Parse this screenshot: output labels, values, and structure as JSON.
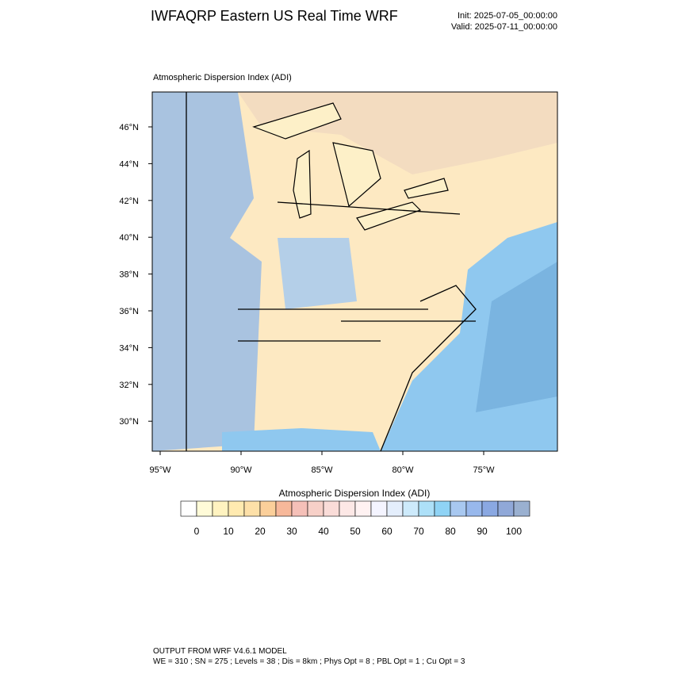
{
  "header": {
    "title": "IWFAQRP Eastern US Real Time WRF",
    "init": "Init: 2025-07-05_00:00:00",
    "valid": "Valid: 2025-07-11_00:00:00"
  },
  "map": {
    "subtitle": "Atmospheric Dispersion Index   (ADI)",
    "lat_labels": [
      "46°N",
      "44°N",
      "42°N",
      "40°N",
      "38°N",
      "36°N",
      "34°N",
      "32°N",
      "30°N"
    ],
    "lon_labels": [
      "95°W",
      "90°W",
      "85°W",
      "80°W",
      "75°W"
    ]
  },
  "colorbar": {
    "title": "Atmospheric Dispersion Index  (ADI)",
    "labels": [
      0,
      10,
      20,
      30,
      40,
      50,
      60,
      70,
      80,
      90,
      100
    ],
    "colors": [
      "#ffffff",
      "#fffbd8",
      "#fff3c0",
      "#ffeab0",
      "#fde0a8",
      "#fbcf9a",
      "#f7b89a",
      "#f5c0b8",
      "#f7d0c8",
      "#fadcd8",
      "#fde8e6",
      "#fff2f2",
      "#f4f4ff",
      "#e4eefc",
      "#cdeafb",
      "#ade0f8",
      "#8fd3f5",
      "#a8c8f0",
      "#98b8ec",
      "#8aa8e2",
      "#90a8d8",
      "#9ab0d0"
    ]
  },
  "footer": {
    "line1": "OUTPUT FROM WRF V4.6.1 MODEL",
    "line2": "WE = 310 ; SN = 275 ; Levels = 38 ; Dis = 8km ; Phys Opt = 8 ; PBL Opt = 1 ; Cu Opt = 3"
  }
}
